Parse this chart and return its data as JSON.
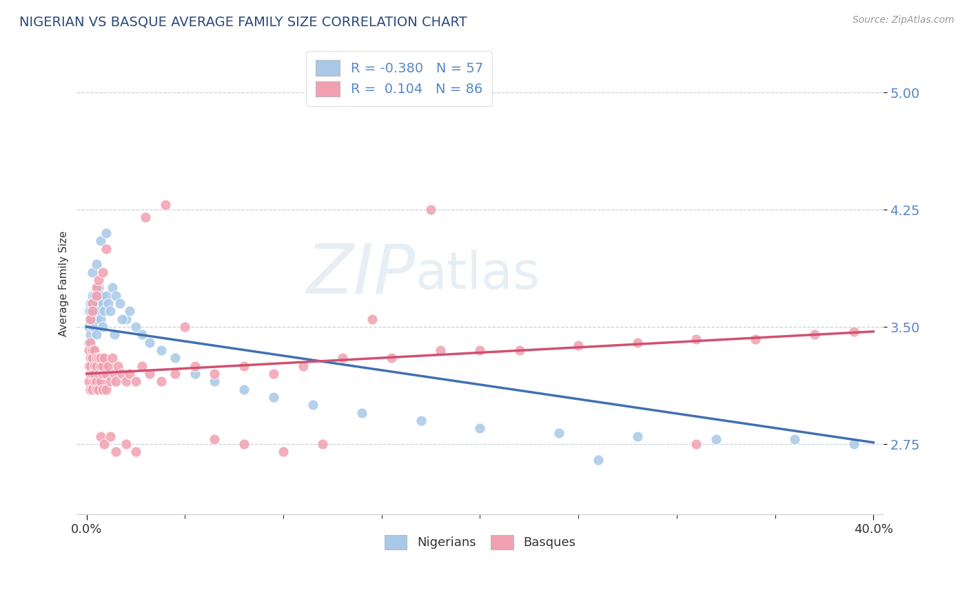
{
  "title": "NIGERIAN VS BASQUE AVERAGE FAMILY SIZE CORRELATION CHART",
  "source_text": "Source: ZipAtlas.com",
  "ylabel": "Average Family Size",
  "ytick_values": [
    2.75,
    3.5,
    4.25,
    5.0
  ],
  "xlim": [
    -0.005,
    0.405
  ],
  "ylim": [
    2.3,
    5.25
  ],
  "watermark_line1": "ZIP",
  "watermark_line2": "atlas",
  "legend_R_nigerian": "-0.380",
  "legend_N_nigerian": "57",
  "legend_R_basque": "0.104",
  "legend_N_basque": "86",
  "nigerian_color": "#a8c8e8",
  "basque_color": "#f0a0b0",
  "nigerian_line_color": "#4070b0",
  "basque_line_color": "#d05070",
  "title_color": "#2a4a7c",
  "tick_color": "#5588cc",
  "nigerians_label": "Nigerians",
  "basques_label": "Basques",
  "nigerian_pts_x": [
    0.001,
    0.001,
    0.001,
    0.002,
    0.002,
    0.002,
    0.002,
    0.003,
    0.003,
    0.003,
    0.003,
    0.004,
    0.004,
    0.004,
    0.005,
    0.005,
    0.005,
    0.006,
    0.006,
    0.007,
    0.007,
    0.008,
    0.008,
    0.009,
    0.01,
    0.011,
    0.012,
    0.013,
    0.015,
    0.017,
    0.02,
    0.022,
    0.025,
    0.028,
    0.032,
    0.038,
    0.045,
    0.055,
    0.065,
    0.08,
    0.095,
    0.115,
    0.14,
    0.17,
    0.2,
    0.24,
    0.28,
    0.32,
    0.36,
    0.39,
    0.003,
    0.005,
    0.007,
    0.01,
    0.014,
    0.018,
    0.26
  ],
  "nigerian_pts_y": [
    3.5,
    3.6,
    3.4,
    3.55,
    3.6,
    3.65,
    3.45,
    3.7,
    3.55,
    3.5,
    3.65,
    3.6,
    3.7,
    3.5,
    3.55,
    3.65,
    3.45,
    3.6,
    3.75,
    3.7,
    3.55,
    3.65,
    3.5,
    3.6,
    3.7,
    3.65,
    3.6,
    3.75,
    3.7,
    3.65,
    3.55,
    3.6,
    3.5,
    3.45,
    3.4,
    3.35,
    3.3,
    3.2,
    3.15,
    3.1,
    3.05,
    3.0,
    2.95,
    2.9,
    2.85,
    2.82,
    2.8,
    2.78,
    2.78,
    2.75,
    3.85,
    3.9,
    4.05,
    4.1,
    3.45,
    3.55,
    2.65
  ],
  "basque_pts_x": [
    0.001,
    0.001,
    0.001,
    0.002,
    0.002,
    0.002,
    0.002,
    0.002,
    0.003,
    0.003,
    0.003,
    0.003,
    0.004,
    0.004,
    0.004,
    0.004,
    0.005,
    0.005,
    0.005,
    0.005,
    0.006,
    0.006,
    0.006,
    0.007,
    0.007,
    0.007,
    0.008,
    0.008,
    0.008,
    0.009,
    0.01,
    0.01,
    0.011,
    0.012,
    0.013,
    0.014,
    0.015,
    0.016,
    0.018,
    0.02,
    0.022,
    0.025,
    0.028,
    0.032,
    0.038,
    0.045,
    0.055,
    0.065,
    0.08,
    0.095,
    0.11,
    0.13,
    0.155,
    0.18,
    0.2,
    0.22,
    0.25,
    0.28,
    0.31,
    0.34,
    0.37,
    0.39,
    0.002,
    0.003,
    0.005,
    0.006,
    0.008,
    0.01,
    0.003,
    0.005,
    0.007,
    0.009,
    0.012,
    0.015,
    0.02,
    0.025,
    0.03,
    0.04,
    0.05,
    0.065,
    0.08,
    0.1,
    0.12,
    0.145,
    0.175,
    0.31
  ],
  "basque_pts_y": [
    3.25,
    3.35,
    3.15,
    3.3,
    3.2,
    3.4,
    3.1,
    3.25,
    3.35,
    3.2,
    3.1,
    3.3,
    3.25,
    3.15,
    3.35,
    3.2,
    3.3,
    3.15,
    3.25,
    3.1,
    3.2,
    3.3,
    3.1,
    3.25,
    3.15,
    3.3,
    3.2,
    3.1,
    3.25,
    3.3,
    3.2,
    3.1,
    3.25,
    3.15,
    3.3,
    3.2,
    3.15,
    3.25,
    3.2,
    3.15,
    3.2,
    3.15,
    3.25,
    3.2,
    3.15,
    3.2,
    3.25,
    3.2,
    3.25,
    3.2,
    3.25,
    3.3,
    3.3,
    3.35,
    3.35,
    3.35,
    3.38,
    3.4,
    3.42,
    3.42,
    3.45,
    3.47,
    3.55,
    3.65,
    3.75,
    3.8,
    3.85,
    4.0,
    3.6,
    3.7,
    2.8,
    2.75,
    2.8,
    2.7,
    2.75,
    2.7,
    4.2,
    4.28,
    3.5,
    2.78,
    2.75,
    2.7,
    2.75,
    3.55,
    4.25,
    2.75
  ],
  "nigerian_trend_x": [
    0.0,
    0.4
  ],
  "nigerian_trend_y": [
    3.5,
    2.76
  ],
  "basque_trend_x": [
    0.0,
    0.4
  ],
  "basque_trend_y": [
    3.2,
    3.47
  ],
  "grid_color": "#c8d0dc",
  "bg_color": "#ffffff"
}
